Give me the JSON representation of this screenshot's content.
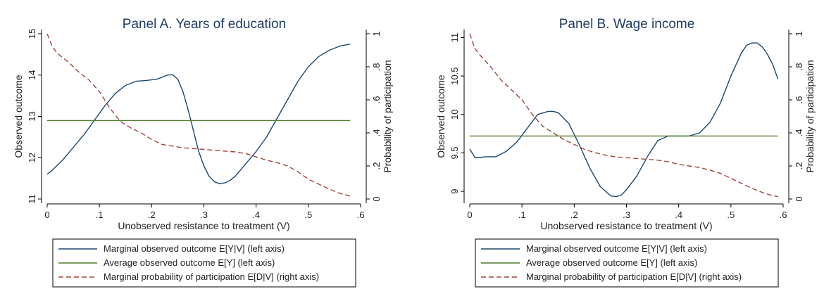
{
  "chart_data": [
    {
      "type": "line",
      "title": "Panel A. Years of education",
      "xlabel": "Unobserved resistance to treatment (V)",
      "ylabel_left": "Observed outcome",
      "ylabel_right": "Probability of participation",
      "xlim": [
        0,
        0.6
      ],
      "ylim_left": [
        11,
        15
      ],
      "ylim_right": [
        0,
        1
      ],
      "x_ticks": [
        {
          "v": 0,
          "label": "0"
        },
        {
          "v": 0.1,
          "label": ".1"
        },
        {
          "v": 0.2,
          "label": ".2"
        },
        {
          "v": 0.3,
          "label": ".3"
        },
        {
          "v": 0.4,
          "label": ".4"
        },
        {
          "v": 0.5,
          "label": ".5"
        },
        {
          "v": 0.6,
          "label": ".6"
        }
      ],
      "y_left_ticks": [
        {
          "v": 11,
          "label": "11"
        },
        {
          "v": 12,
          "label": "12"
        },
        {
          "v": 13,
          "label": "13"
        },
        {
          "v": 14,
          "label": "14"
        },
        {
          "v": 15,
          "label": "15"
        }
      ],
      "y_right_ticks": [
        {
          "v": 0,
          "label": "0"
        },
        {
          "v": 0.2,
          "label": ".2"
        },
        {
          "v": 0.4,
          "label": ".4"
        },
        {
          "v": 0.6,
          "label": ".6"
        },
        {
          "v": 0.8,
          "label": ".8"
        },
        {
          "v": 1,
          "label": "1"
        }
      ],
      "series": [
        {
          "name": "Marginal observed outcome E[Y|V] (left axis)",
          "axis": "left",
          "color": "#1a476f",
          "dash": "solid",
          "x": [
            0,
            0.01,
            0.03,
            0.05,
            0.07,
            0.09,
            0.11,
            0.13,
            0.15,
            0.17,
            0.19,
            0.21,
            0.23,
            0.24,
            0.25,
            0.26,
            0.27,
            0.28,
            0.29,
            0.3,
            0.31,
            0.32,
            0.33,
            0.34,
            0.35,
            0.36,
            0.38,
            0.4,
            0.42,
            0.44,
            0.46,
            0.48,
            0.5,
            0.52,
            0.54,
            0.56,
            0.58
          ],
          "y": [
            11.6,
            11.7,
            11.95,
            12.25,
            12.55,
            12.9,
            13.25,
            13.55,
            13.75,
            13.85,
            13.87,
            13.9,
            14.0,
            14.01,
            13.9,
            13.6,
            13.15,
            12.65,
            12.15,
            11.8,
            11.55,
            11.42,
            11.37,
            11.39,
            11.45,
            11.55,
            11.85,
            12.15,
            12.5,
            12.95,
            13.4,
            13.85,
            14.2,
            14.45,
            14.6,
            14.7,
            14.75
          ]
        },
        {
          "name": "Average observed outcome E[Y] (left axis)",
          "axis": "left",
          "color": "#4f7d2c",
          "dash": "solid",
          "x": [
            0,
            0.58
          ],
          "y": [
            12.9,
            12.9
          ]
        },
        {
          "name": "Marginal probability of participation E[D|V] (right axis)",
          "axis": "right",
          "color": "#a0463c",
          "dash": "dashed",
          "x": [
            0,
            0.01,
            0.02,
            0.04,
            0.06,
            0.08,
            0.1,
            0.12,
            0.14,
            0.16,
            0.18,
            0.2,
            0.22,
            0.24,
            0.26,
            0.28,
            0.3,
            0.32,
            0.34,
            0.36,
            0.38,
            0.4,
            0.42,
            0.44,
            0.46,
            0.48,
            0.5,
            0.52,
            0.54,
            0.56,
            0.58
          ],
          "y": [
            1.0,
            0.92,
            0.88,
            0.83,
            0.77,
            0.72,
            0.65,
            0.55,
            0.47,
            0.43,
            0.4,
            0.36,
            0.33,
            0.32,
            0.31,
            0.305,
            0.3,
            0.295,
            0.29,
            0.285,
            0.275,
            0.255,
            0.235,
            0.22,
            0.2,
            0.165,
            0.12,
            0.09,
            0.06,
            0.035,
            0.018
          ]
        }
      ]
    },
    {
      "type": "line",
      "title": "Panel B. Wage income",
      "xlabel": "Unobserved resistance to treatment (V)",
      "ylabel_left": "Observed outcome",
      "ylabel_right": "Probability of participation",
      "xlim": [
        0,
        0.6
      ],
      "ylim_left": [
        8.9,
        11.05
      ],
      "ylim_right": [
        0,
        1
      ],
      "x_ticks": [
        {
          "v": 0,
          "label": "0"
        },
        {
          "v": 0.1,
          "label": ".1"
        },
        {
          "v": 0.2,
          "label": ".2"
        },
        {
          "v": 0.3,
          "label": ".3"
        },
        {
          "v": 0.4,
          "label": ".4"
        },
        {
          "v": 0.5,
          "label": ".5"
        },
        {
          "v": 0.6,
          "label": ".6"
        }
      ],
      "y_left_ticks": [
        {
          "v": 9,
          "label": "9"
        },
        {
          "v": 9.5,
          "label": "9.5"
        },
        {
          "v": 10,
          "label": "10"
        },
        {
          "v": 10.5,
          "label": "10.5"
        },
        {
          "v": 11,
          "label": "11"
        }
      ],
      "y_right_ticks": [
        {
          "v": 0,
          "label": "0"
        },
        {
          "v": 0.2,
          "label": ".2"
        },
        {
          "v": 0.4,
          "label": ".4"
        },
        {
          "v": 0.6,
          "label": ".6"
        },
        {
          "v": 0.8,
          "label": ".8"
        },
        {
          "v": 1,
          "label": "1"
        }
      ],
      "series": [
        {
          "name": "Marginal observed outcome E[Y|V] (left axis)",
          "axis": "left",
          "color": "#1a476f",
          "dash": "solid",
          "x": [
            0,
            0.01,
            0.02,
            0.03,
            0.05,
            0.07,
            0.09,
            0.11,
            0.13,
            0.15,
            0.16,
            0.17,
            0.19,
            0.21,
            0.23,
            0.25,
            0.27,
            0.28,
            0.29,
            0.3,
            0.32,
            0.34,
            0.36,
            0.38,
            0.4,
            0.42,
            0.44,
            0.46,
            0.48,
            0.5,
            0.52,
            0.53,
            0.54,
            0.55,
            0.56,
            0.57,
            0.58,
            0.59
          ],
          "y": [
            9.55,
            9.44,
            9.44,
            9.45,
            9.45,
            9.52,
            9.64,
            9.82,
            10.0,
            10.04,
            10.04,
            10.02,
            9.88,
            9.6,
            9.3,
            9.06,
            8.94,
            8.93,
            8.95,
            9.02,
            9.2,
            9.45,
            9.66,
            9.72,
            9.72,
            9.72,
            9.76,
            9.9,
            10.15,
            10.5,
            10.8,
            10.9,
            10.93,
            10.93,
            10.88,
            10.78,
            10.65,
            10.46
          ]
        },
        {
          "name": "Average observed outcome E[Y] (left axis)",
          "axis": "left",
          "color": "#4f7d2c",
          "dash": "solid",
          "x": [
            0,
            0.59
          ],
          "y": [
            9.72,
            9.72
          ]
        },
        {
          "name": "Marginal probability of participation E[D|V] (right axis)",
          "axis": "right",
          "color": "#a0463c",
          "dash": "dashed",
          "x": [
            0,
            0.01,
            0.02,
            0.04,
            0.06,
            0.08,
            0.1,
            0.12,
            0.14,
            0.16,
            0.18,
            0.2,
            0.22,
            0.24,
            0.26,
            0.28,
            0.3,
            0.32,
            0.34,
            0.36,
            0.38,
            0.4,
            0.42,
            0.44,
            0.46,
            0.48,
            0.5,
            0.52,
            0.54,
            0.56,
            0.58,
            0.59
          ],
          "y": [
            1.0,
            0.91,
            0.87,
            0.8,
            0.72,
            0.66,
            0.6,
            0.51,
            0.44,
            0.4,
            0.36,
            0.33,
            0.3,
            0.28,
            0.265,
            0.255,
            0.25,
            0.245,
            0.24,
            0.235,
            0.225,
            0.21,
            0.2,
            0.19,
            0.175,
            0.155,
            0.125,
            0.095,
            0.065,
            0.04,
            0.02,
            0.015
          ]
        }
      ]
    }
  ]
}
